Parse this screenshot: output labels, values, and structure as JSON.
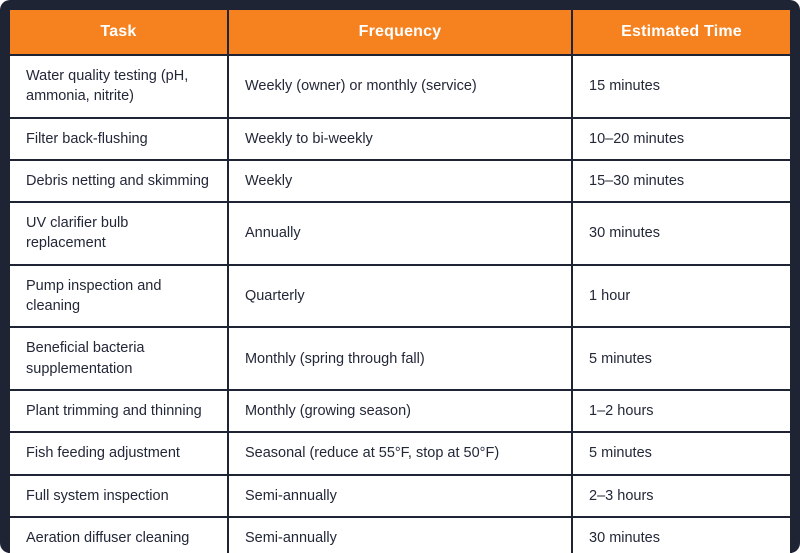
{
  "colors": {
    "frame_border": "#1E2433",
    "header_bg": "#F6821F",
    "header_text": "#FFFFFF",
    "row_bg": "#FFFFFF",
    "body_text": "#232838"
  },
  "table": {
    "headers": {
      "task": "Task",
      "frequency": "Frequency",
      "estimated_time": "Estimated Time"
    },
    "rows": [
      {
        "task": "Water quality testing (pH, ammonia, nitrite)",
        "frequency": "Weekly (owner) or monthly (service)",
        "time": "15 minutes"
      },
      {
        "task": "Filter back-flushing",
        "frequency": "Weekly to bi-weekly",
        "time": "10–20 minutes"
      },
      {
        "task": "Debris netting and skimming",
        "frequency": "Weekly",
        "time": "15–30 minutes"
      },
      {
        "task": "UV clarifier bulb replacement",
        "frequency": "Annually",
        "time": "30 minutes"
      },
      {
        "task": "Pump inspection and cleaning",
        "frequency": "Quarterly",
        "time": "1 hour"
      },
      {
        "task": "Beneficial bacteria supplementation",
        "frequency": "Monthly (spring through fall)",
        "time": "5 minutes"
      },
      {
        "task": "Plant trimming and thinning",
        "frequency": "Monthly (growing season)",
        "time": "1–2 hours"
      },
      {
        "task": "Fish feeding adjustment",
        "frequency": "Seasonal (reduce at 55°F, stop at 50°F)",
        "time": "5 minutes"
      },
      {
        "task": "Full system inspection",
        "frequency": "Semi-annually",
        "time": "2–3 hours"
      },
      {
        "task": "Aeration diffuser cleaning",
        "frequency": "Semi-annually",
        "time": "30 minutes"
      }
    ]
  }
}
